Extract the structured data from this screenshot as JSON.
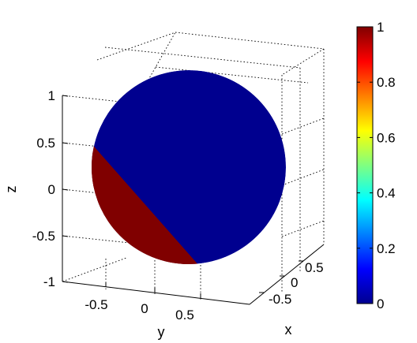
{
  "chart_data": [
    {
      "type": "surface",
      "title": "",
      "surface": "unit sphere",
      "colormap": "jet",
      "clim": [
        0,
        1
      ],
      "x_label": "x",
      "y_label": "y",
      "z_label": "z",
      "x_ticks": [
        "-0.5",
        "0",
        "0.5"
      ],
      "y_ticks": [
        "-0.5",
        "0",
        "0.5"
      ],
      "z_ticks": [
        "-1",
        "-0.5",
        "0",
        "0.5",
        "1"
      ],
      "grid": true,
      "regions": [
        {
          "value": 0,
          "color": "#00008f",
          "description": "most of the sphere"
        },
        {
          "value": 1,
          "color": "#800000",
          "description": "lower-left cap of the sphere"
        }
      ],
      "transition": "sharp boundary running diagonally from upper-left to lower-right"
    },
    {
      "type": "colorbar",
      "colormap": "jet",
      "range": [
        0,
        1
      ],
      "ticks": [
        "0",
        "0.2",
        "0.4",
        "0.6",
        "0.8",
        "1"
      ],
      "tick_values": [
        0,
        0.2,
        0.4,
        0.6,
        0.8,
        1
      ]
    }
  ]
}
